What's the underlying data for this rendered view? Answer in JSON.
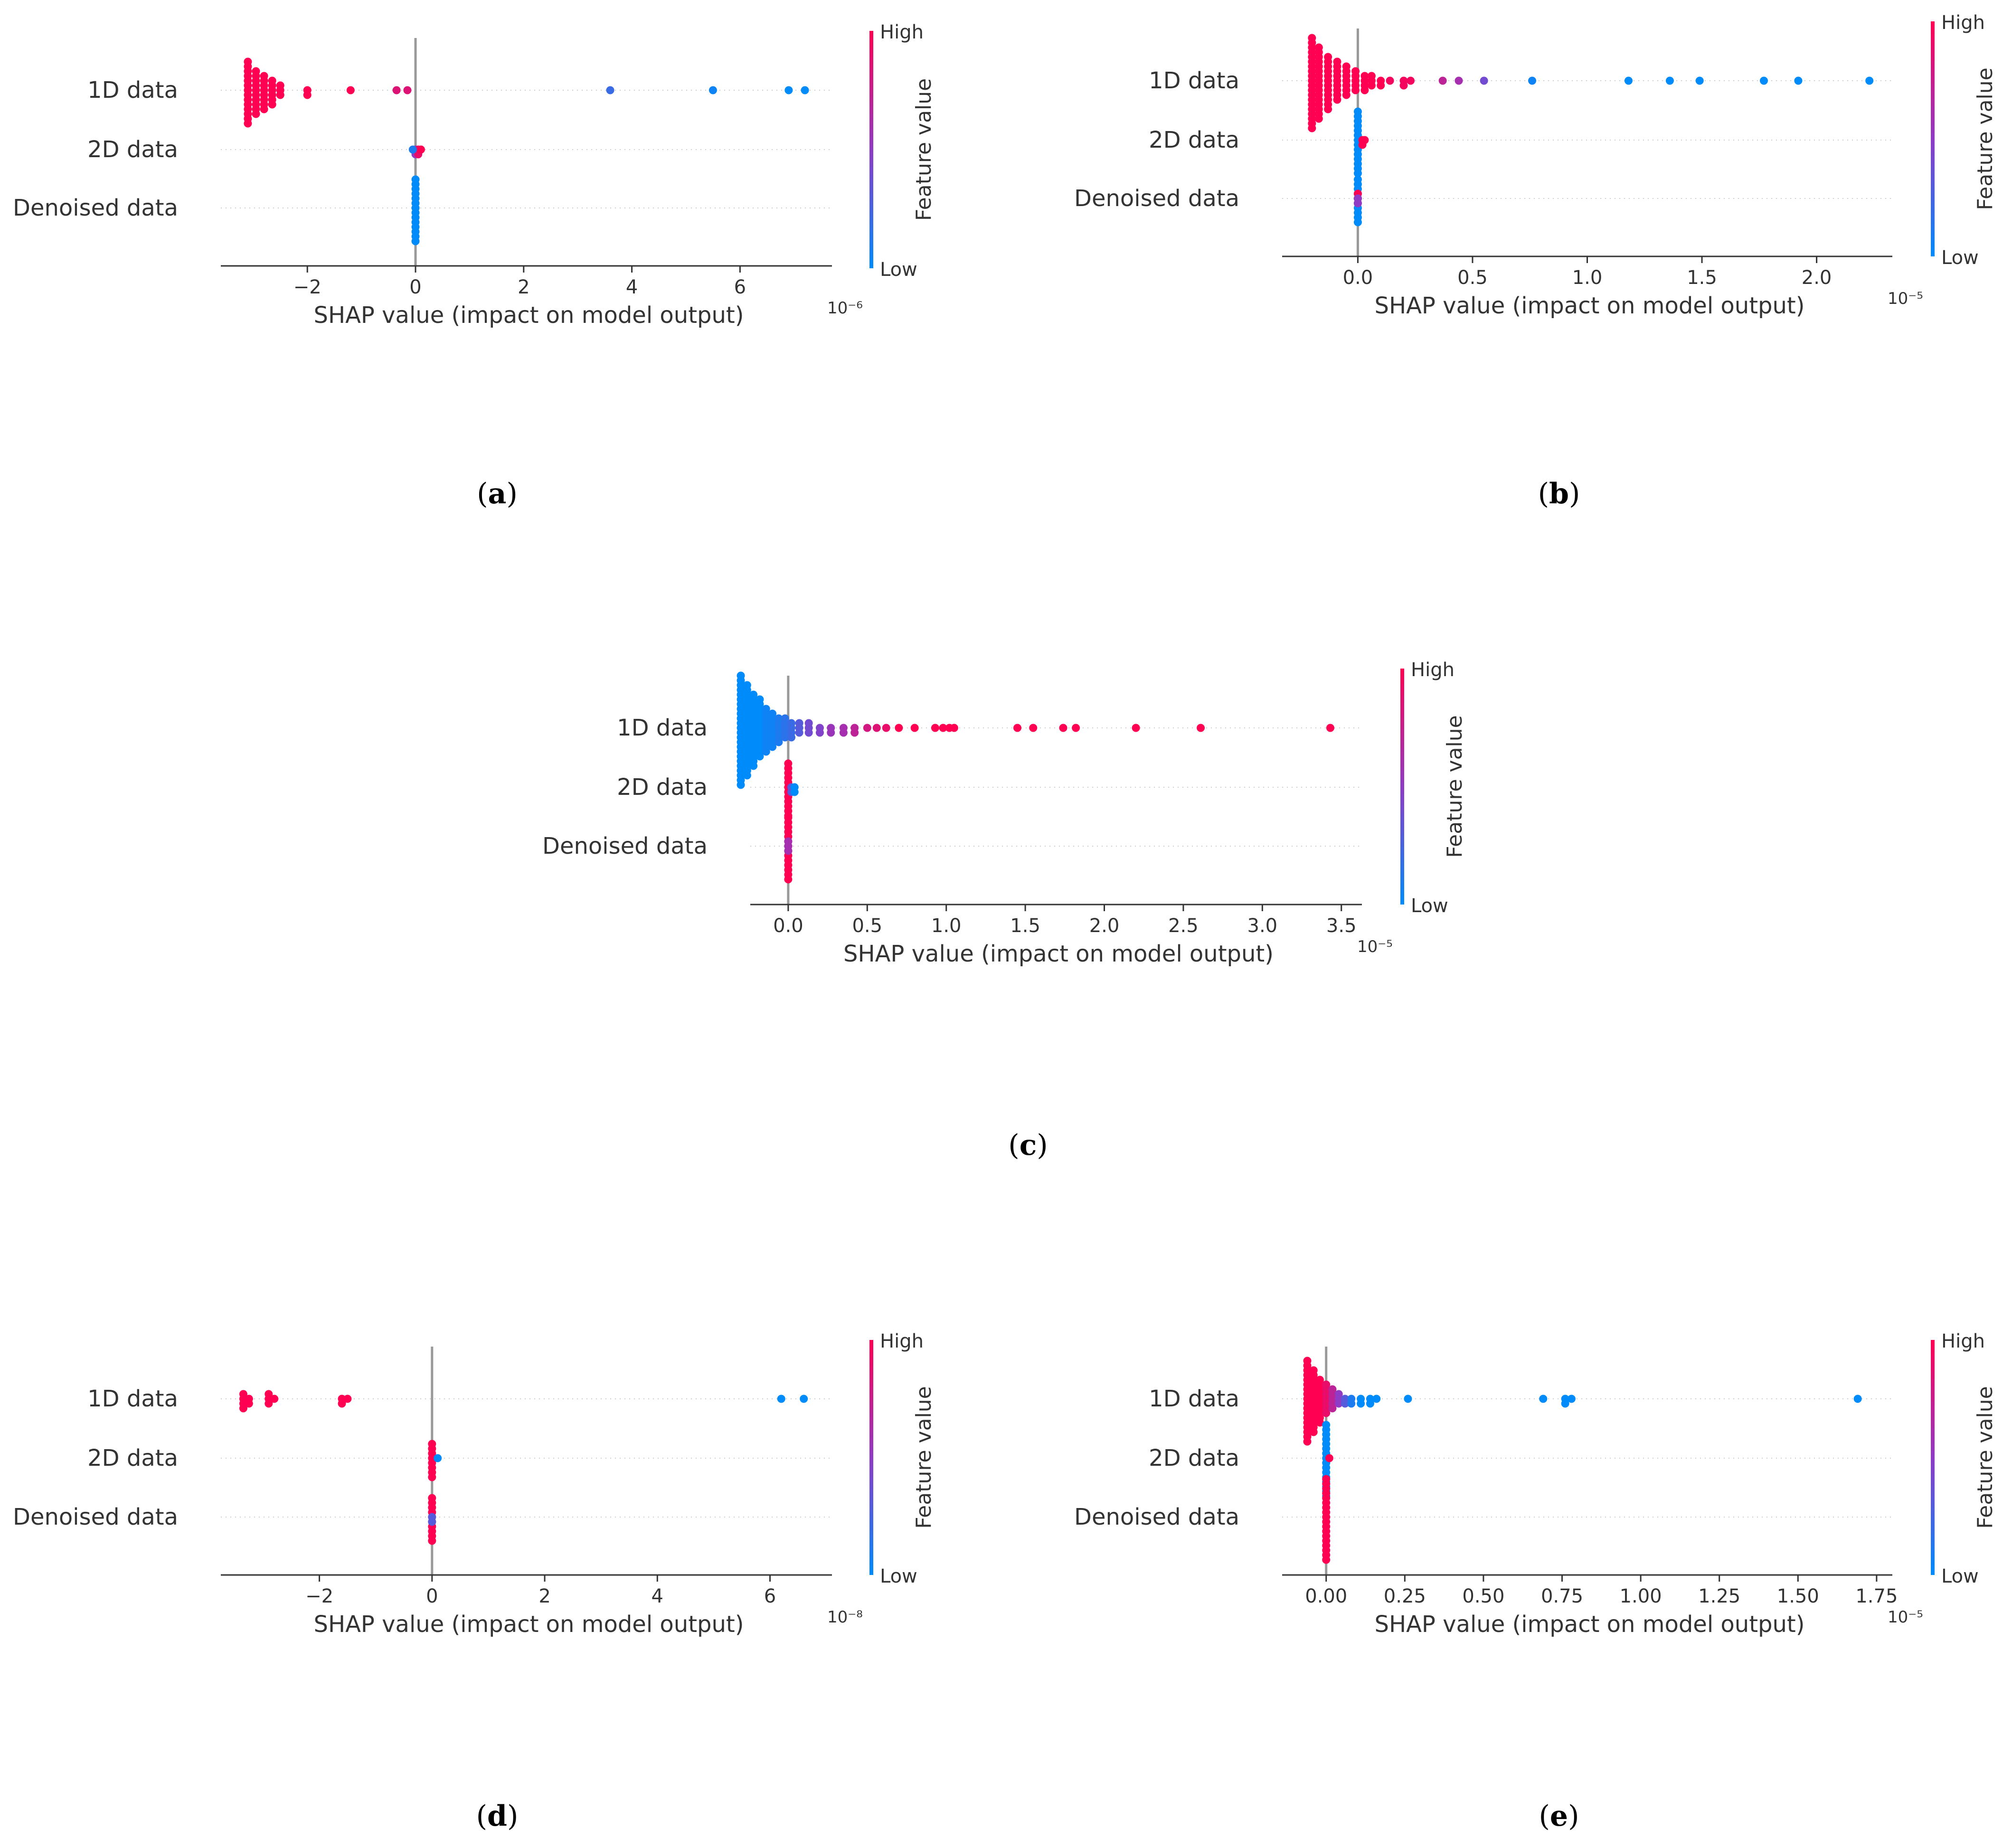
{
  "figure": {
    "common": {
      "features": [
        "1D data",
        "2D data",
        "Denoised data"
      ],
      "xlabel": "SHAP value (impact on model output)",
      "colorbar_label": "Feature value",
      "colorbar_high": "High",
      "colorbar_low": "Low",
      "color_high": "#ff0052",
      "color_low": "#008bfb",
      "color_mid": "#8f3bc5",
      "zero_line_color": "#999999",
      "axis_color": "#333333",
      "text_color": "#333333"
    }
  },
  "chart_data": [
    {
      "type": "scatter",
      "caption": "a",
      "xlabel": "SHAP value (impact on model output)",
      "xlim": [
        -3.6,
        7.7
      ],
      "xticks": [
        -2,
        0,
        2,
        4,
        6
      ],
      "xtick_labels": [
        "−2",
        "0",
        "2",
        "4",
        "6"
      ],
      "offset_text": "10⁻⁶",
      "features": [
        "1D data",
        "2D data",
        "Denoised data"
      ],
      "series": [
        {
          "name": "1D data",
          "points": [
            {
              "x": -3.1,
              "c": 1,
              "n": 14
            },
            {
              "x": -2.95,
              "c": 1,
              "n": 10
            },
            {
              "x": -2.8,
              "c": 1,
              "n": 8
            },
            {
              "x": -2.65,
              "c": 1,
              "n": 6
            },
            {
              "x": -2.5,
              "c": 1,
              "n": 3
            },
            {
              "x": -2.0,
              "c": 1,
              "n": 2
            },
            {
              "x": -1.2,
              "c": 1,
              "n": 1
            },
            {
              "x": -0.35,
              "c": 0.85,
              "n": 1
            },
            {
              "x": -0.15,
              "c": 0.85,
              "n": 1
            },
            {
              "x": 3.6,
              "c": 0.2,
              "n": 1
            },
            {
              "x": 5.5,
              "c": 0.05,
              "n": 1
            },
            {
              "x": 6.9,
              "c": 0,
              "n": 1
            },
            {
              "x": 7.2,
              "c": 0,
              "n": 1
            }
          ]
        },
        {
          "name": "2D data",
          "points": [
            {
              "x": 0.0,
              "c": 0.5,
              "n": 2
            },
            {
              "x": 0.05,
              "c": 0.9,
              "n": 2
            },
            {
              "x": -0.05,
              "c": 0.1,
              "n": 1
            },
            {
              "x": 0.1,
              "c": 1,
              "n": 1
            }
          ]
        },
        {
          "name": "Denoised data",
          "points": [
            {
              "x": 0.0,
              "c": 0,
              "n": 14
            }
          ]
        }
      ]
    },
    {
      "type": "scatter",
      "caption": "b",
      "xlabel": "SHAP value (impact on model output)",
      "xlim": [
        -0.33,
        2.33
      ],
      "xticks": [
        0.0,
        0.5,
        1.0,
        1.5,
        2.0
      ],
      "xtick_labels": [
        "0.0",
        "0.5",
        "1.0",
        "1.5",
        "2.0"
      ],
      "offset_text": "10⁻⁵",
      "features": [
        "1D data",
        "2D data",
        "Denoised data"
      ],
      "series": [
        {
          "name": "1D data",
          "points": [
            {
              "x": -0.2,
              "c": 1,
              "n": 20
            },
            {
              "x": -0.17,
              "c": 1,
              "n": 16
            },
            {
              "x": -0.13,
              "c": 1,
              "n": 12
            },
            {
              "x": -0.09,
              "c": 1,
              "n": 9
            },
            {
              "x": -0.05,
              "c": 1,
              "n": 7
            },
            {
              "x": -0.01,
              "c": 1,
              "n": 5
            },
            {
              "x": 0.03,
              "c": 1,
              "n": 4
            },
            {
              "x": 0.06,
              "c": 1,
              "n": 3
            },
            {
              "x": 0.1,
              "c": 1,
              "n": 2
            },
            {
              "x": 0.14,
              "c": 0.95,
              "n": 1
            },
            {
              "x": 0.2,
              "c": 0.95,
              "n": 2
            },
            {
              "x": 0.23,
              "c": 0.95,
              "n": 1
            },
            {
              "x": 0.37,
              "c": 0.7,
              "n": 1
            },
            {
              "x": 0.44,
              "c": 0.6,
              "n": 1
            },
            {
              "x": 0.55,
              "c": 0.4,
              "n": 1
            },
            {
              "x": 0.76,
              "c": 0.05,
              "n": 1
            },
            {
              "x": 1.18,
              "c": 0,
              "n": 1
            },
            {
              "x": 1.36,
              "c": 0,
              "n": 1
            },
            {
              "x": 1.49,
              "c": 0,
              "n": 1
            },
            {
              "x": 1.77,
              "c": 0,
              "n": 1
            },
            {
              "x": 1.92,
              "c": 0,
              "n": 1
            },
            {
              "x": 2.23,
              "c": 0,
              "n": 1
            }
          ]
        },
        {
          "name": "2D data",
          "points": [
            {
              "x": 0.0,
              "c": 0,
              "n": 14
            },
            {
              "x": 0.02,
              "c": 1,
              "n": 2
            },
            {
              "x": 0.03,
              "c": 1,
              "n": 1
            }
          ]
        },
        {
          "name": "Denoised data",
          "points": [
            {
              "x": 0.0,
              "c": 0,
              "n": 10
            },
            {
              "x": 0.0,
              "c": 1,
              "n": 3
            },
            {
              "x": 0.0,
              "c": 0.5,
              "n": 2
            }
          ]
        }
      ]
    },
    {
      "type": "scatter",
      "caption": "c",
      "xlabel": "SHAP value (impact on model output)",
      "xlim": [
        -0.24,
        3.63
      ],
      "xticks": [
        0.0,
        0.5,
        1.0,
        1.5,
        2.0,
        2.5,
        3.0,
        3.5
      ],
      "xtick_labels": [
        "0.0",
        "0.5",
        "1.0",
        "1.5",
        "2.0",
        "2.5",
        "3.0",
        "3.5"
      ],
      "offset_text": "10⁻⁵",
      "features": [
        "1D data",
        "2D data",
        "Denoised data"
      ],
      "series": [
        {
          "name": "1D data",
          "points": [
            {
              "x": -0.3,
              "c": 0,
              "n": 24
            },
            {
              "x": -0.26,
              "c": 0,
              "n": 20
            },
            {
              "x": -0.22,
              "c": 0,
              "n": 16
            },
            {
              "x": -0.18,
              "c": 0,
              "n": 13
            },
            {
              "x": -0.14,
              "c": 0.05,
              "n": 10
            },
            {
              "x": -0.1,
              "c": 0.05,
              "n": 8
            },
            {
              "x": -0.06,
              "c": 0.1,
              "n": 6
            },
            {
              "x": -0.02,
              "c": 0.15,
              "n": 5
            },
            {
              "x": 0.02,
              "c": 0.2,
              "n": 4
            },
            {
              "x": 0.07,
              "c": 0.3,
              "n": 3
            },
            {
              "x": 0.13,
              "c": 0.4,
              "n": 3
            },
            {
              "x": 0.2,
              "c": 0.45,
              "n": 2
            },
            {
              "x": 0.27,
              "c": 0.55,
              "n": 2
            },
            {
              "x": 0.35,
              "c": 0.6,
              "n": 2
            },
            {
              "x": 0.42,
              "c": 0.7,
              "n": 2
            },
            {
              "x": 0.5,
              "c": 0.8,
              "n": 1
            },
            {
              "x": 0.56,
              "c": 0.85,
              "n": 1
            },
            {
              "x": 0.62,
              "c": 0.9,
              "n": 1
            },
            {
              "x": 0.7,
              "c": 1,
              "n": 1
            },
            {
              "x": 0.8,
              "c": 1,
              "n": 1
            },
            {
              "x": 0.93,
              "c": 1,
              "n": 1
            },
            {
              "x": 0.98,
              "c": 1,
              "n": 1
            },
            {
              "x": 1.02,
              "c": 1,
              "n": 1
            },
            {
              "x": 1.05,
              "c": 1,
              "n": 1
            },
            {
              "x": 1.45,
              "c": 1,
              "n": 1
            },
            {
              "x": 1.55,
              "c": 1,
              "n": 1
            },
            {
              "x": 1.74,
              "c": 1,
              "n": 1
            },
            {
              "x": 1.82,
              "c": 1,
              "n": 1
            },
            {
              "x": 2.2,
              "c": 1,
              "n": 1
            },
            {
              "x": 2.61,
              "c": 1,
              "n": 1
            },
            {
              "x": 3.43,
              "c": 1,
              "n": 1
            }
          ]
        },
        {
          "name": "2D data",
          "points": [
            {
              "x": 0.0,
              "c": 1,
              "n": 12
            },
            {
              "x": 0.02,
              "c": 0.3,
              "n": 2
            },
            {
              "x": 0.04,
              "c": 0,
              "n": 2
            }
          ]
        },
        {
          "name": "Denoised data",
          "points": [
            {
              "x": 0.0,
              "c": 1,
              "n": 14
            },
            {
              "x": 0.0,
              "c": 0.6,
              "n": 3
            }
          ]
        }
      ]
    },
    {
      "type": "scatter",
      "caption": "d",
      "xlabel": "SHAP value (impact on model output)",
      "xlim": [
        -3.75,
        7.1
      ],
      "xticks": [
        -2,
        0,
        2,
        4,
        6
      ],
      "xtick_labels": [
        "−2",
        "0",
        "2",
        "4",
        "6"
      ],
      "offset_text": "10⁻⁸",
      "features": [
        "1D data",
        "2D data",
        "Denoised data"
      ],
      "series": [
        {
          "name": "1D data",
          "points": [
            {
              "x": -3.35,
              "c": 1,
              "n": 4
            },
            {
              "x": -3.25,
              "c": 1,
              "n": 2
            },
            {
              "x": -2.9,
              "c": 1,
              "n": 3
            },
            {
              "x": -2.8,
              "c": 1,
              "n": 1
            },
            {
              "x": -1.6,
              "c": 1,
              "n": 2
            },
            {
              "x": -1.5,
              "c": 1,
              "n": 1
            },
            {
              "x": 6.2,
              "c": 0,
              "n": 1
            },
            {
              "x": 6.6,
              "c": 0,
              "n": 1
            }
          ]
        },
        {
          "name": "2D data",
          "points": [
            {
              "x": 0.0,
              "c": 1,
              "n": 8
            },
            {
              "x": 0.1,
              "c": 0,
              "n": 1
            }
          ]
        },
        {
          "name": "Denoised data",
          "points": [
            {
              "x": 0.0,
              "c": 1,
              "n": 10
            },
            {
              "x": 0.0,
              "c": 0.3,
              "n": 2
            }
          ]
        }
      ]
    },
    {
      "type": "scatter",
      "caption": "e",
      "xlabel": "SHAP value (impact on model output)",
      "xlim": [
        -0.14,
        1.8
      ],
      "xticks": [
        0.0,
        0.25,
        0.5,
        0.75,
        1.0,
        1.25,
        1.5,
        1.75
      ],
      "xtick_labels": [
        "0.00",
        "0.25",
        "0.50",
        "0.75",
        "1.00",
        "1.25",
        "1.50",
        "1.75"
      ],
      "offset_text": "10⁻⁵",
      "features": [
        "1D data",
        "2D data",
        "Denoised data"
      ],
      "series": [
        {
          "name": "1D data",
          "points": [
            {
              "x": -0.06,
              "c": 1,
              "n": 18
            },
            {
              "x": -0.04,
              "c": 1,
              "n": 14
            },
            {
              "x": -0.02,
              "c": 1,
              "n": 10
            },
            {
              "x": 0.0,
              "c": 0.9,
              "n": 7
            },
            {
              "x": 0.02,
              "c": 0.7,
              "n": 5
            },
            {
              "x": 0.04,
              "c": 0.5,
              "n": 3
            },
            {
              "x": 0.06,
              "c": 0.3,
              "n": 2
            },
            {
              "x": 0.08,
              "c": 0.1,
              "n": 2
            },
            {
              "x": 0.11,
              "c": 0,
              "n": 2
            },
            {
              "x": 0.14,
              "c": 0,
              "n": 2
            },
            {
              "x": 0.16,
              "c": 0,
              "n": 1
            },
            {
              "x": 0.26,
              "c": 0,
              "n": 1
            },
            {
              "x": 0.69,
              "c": 0,
              "n": 1
            },
            {
              "x": 0.76,
              "c": 0,
              "n": 2
            },
            {
              "x": 0.78,
              "c": 0,
              "n": 1
            },
            {
              "x": 1.69,
              "c": 0,
              "n": 1
            }
          ]
        },
        {
          "name": "2D data",
          "points": [
            {
              "x": 0.0,
              "c": 0,
              "n": 16
            },
            {
              "x": 0.01,
              "c": 1,
              "n": 1
            }
          ]
        },
        {
          "name": "Denoised data",
          "points": [
            {
              "x": 0.0,
              "c": 1,
              "n": 18
            }
          ]
        }
      ]
    }
  ]
}
